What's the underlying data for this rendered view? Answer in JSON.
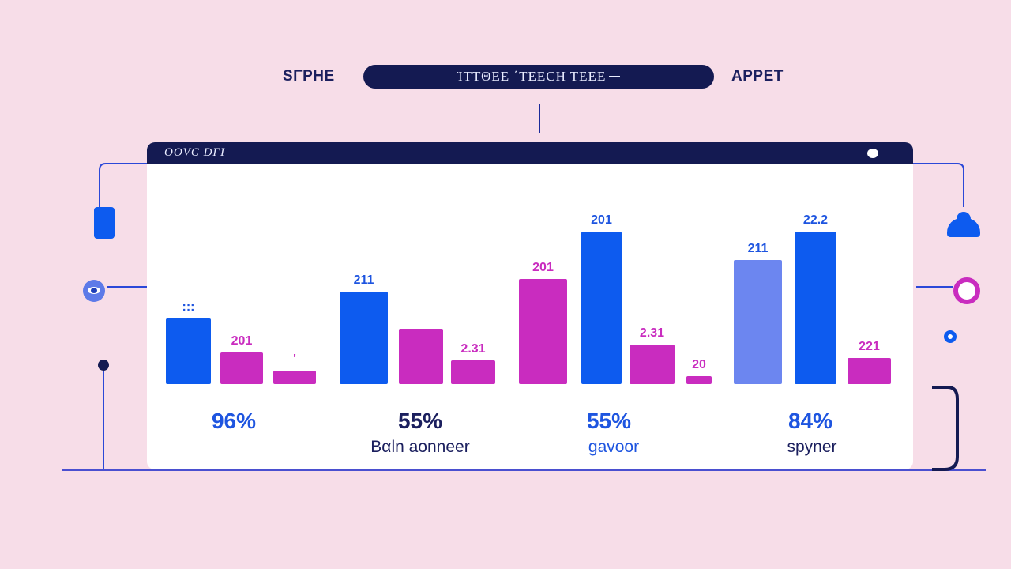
{
  "header": {
    "left_label": "SΓPHE",
    "pill_text": "ΊΤΤΘΕΕ ΄ΤΕΕCΗ ΤΕΕΕ",
    "right_label": "APPET"
  },
  "panel": {
    "title": "OOVC DΓΙ"
  },
  "colors": {
    "background": "#f7dde8",
    "navy": "#141a52",
    "blue": "#0d5bef",
    "magenta": "#c92cbf",
    "periwinkle": "#6c86f0"
  },
  "chart_data": {
    "type": "bar",
    "title": "",
    "groups": [
      {
        "percent": "96%",
        "label": "",
        "bars": [
          {
            "value": 83,
            "label": ":::",
            "color": "blue"
          },
          {
            "value": 40,
            "label": "201",
            "color": "magenta"
          },
          {
            "value": 17,
            "label": "'",
            "color": "magenta"
          }
        ]
      },
      {
        "percent": "55%",
        "label": "Bαln aonneer",
        "bars": [
          {
            "value": 117,
            "label": "211",
            "color": "blue"
          },
          {
            "value": 70,
            "label": "",
            "color": "magenta"
          },
          {
            "value": 30,
            "label": "2.31",
            "color": "magenta"
          }
        ]
      },
      {
        "percent": "55%",
        "label": "gavoor",
        "bars": [
          {
            "value": 133,
            "label": "201",
            "color": "magenta"
          },
          {
            "value": 193,
            "label": "201",
            "color": "blue"
          },
          {
            "value": 50,
            "label": "2.31",
            "color": "magenta"
          },
          {
            "value": 10,
            "label": "20",
            "color": "magenta"
          }
        ]
      },
      {
        "percent": "84%",
        "label": "spyner",
        "bars": [
          {
            "value": 157,
            "label": "211",
            "color": "periwinkle"
          },
          {
            "value": 193,
            "label": "22.2",
            "color": "blue"
          },
          {
            "value": 33,
            "label": "221",
            "color": "magenta"
          }
        ]
      }
    ],
    "ylim": [
      0,
      210
    ]
  }
}
